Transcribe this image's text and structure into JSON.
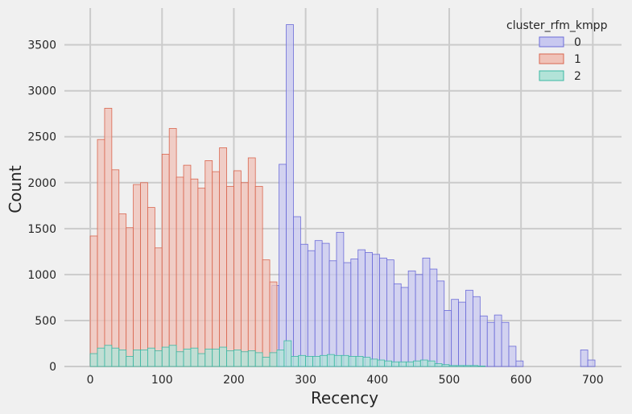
{
  "chart_data": {
    "type": "histogram",
    "xlabel": "Recency",
    "ylabel": "Count",
    "xlim": [
      -36,
      740
    ],
    "ylim": [
      0,
      3900
    ],
    "x_ticks": [
      0,
      100,
      200,
      300,
      400,
      500,
      600,
      700
    ],
    "y_ticks": [
      0,
      500,
      1000,
      1500,
      2000,
      2500,
      3000,
      3500
    ],
    "grid": true,
    "legend": {
      "title": "cluster_rfm_kmpp",
      "position": "top-right"
    },
    "series": [
      {
        "name": "0",
        "color": "#6b6bd8",
        "fill": "#c8c8f0",
        "bins": [
          [
            253,
            263,
            880
          ],
          [
            263,
            273,
            2200
          ],
          [
            273,
            283,
            3720
          ],
          [
            283,
            293,
            1630
          ],
          [
            293,
            303,
            1330
          ],
          [
            303,
            313,
            1260
          ],
          [
            313,
            323,
            1370
          ],
          [
            323,
            333,
            1340
          ],
          [
            333,
            343,
            1150
          ],
          [
            343,
            353,
            1460
          ],
          [
            353,
            363,
            1130
          ],
          [
            363,
            373,
            1170
          ],
          [
            373,
            383,
            1270
          ],
          [
            383,
            393,
            1240
          ],
          [
            393,
            403,
            1220
          ],
          [
            403,
            413,
            1180
          ],
          [
            413,
            423,
            1160
          ],
          [
            423,
            433,
            900
          ],
          [
            433,
            443,
            860
          ],
          [
            443,
            453,
            1040
          ],
          [
            453,
            463,
            1000
          ],
          [
            463,
            473,
            1180
          ],
          [
            473,
            483,
            1060
          ],
          [
            483,
            493,
            930
          ],
          [
            493,
            503,
            610
          ],
          [
            503,
            513,
            730
          ],
          [
            513,
            523,
            700
          ],
          [
            523,
            533,
            830
          ],
          [
            533,
            543,
            760
          ],
          [
            543,
            553,
            550
          ],
          [
            553,
            563,
            480
          ],
          [
            563,
            573,
            560
          ],
          [
            573,
            583,
            480
          ],
          [
            583,
            593,
            220
          ],
          [
            593,
            603,
            60
          ],
          [
            683,
            693,
            180
          ],
          [
            693,
            703,
            70
          ]
        ]
      },
      {
        "name": "1",
        "color": "#d9664f",
        "fill": "#f0c2b8",
        "bins": [
          [
            0,
            10,
            1420
          ],
          [
            10,
            20,
            2470
          ],
          [
            20,
            30,
            2810
          ],
          [
            30,
            40,
            2140
          ],
          [
            40,
            50,
            1660
          ],
          [
            50,
            60,
            1510
          ],
          [
            60,
            70,
            1980
          ],
          [
            70,
            80,
            2000
          ],
          [
            80,
            90,
            1730
          ],
          [
            90,
            100,
            1290
          ],
          [
            100,
            110,
            2310
          ],
          [
            110,
            120,
            2590
          ],
          [
            120,
            130,
            2060
          ],
          [
            130,
            140,
            2190
          ],
          [
            140,
            150,
            2040
          ],
          [
            150,
            160,
            1940
          ],
          [
            160,
            170,
            2240
          ],
          [
            170,
            180,
            2120
          ],
          [
            180,
            190,
            2380
          ],
          [
            190,
            200,
            1960
          ],
          [
            200,
            210,
            2130
          ],
          [
            210,
            220,
            2000
          ],
          [
            220,
            230,
            2270
          ],
          [
            230,
            240,
            1960
          ],
          [
            240,
            250,
            1160
          ],
          [
            250,
            260,
            920
          ]
        ]
      },
      {
        "name": "2",
        "color": "#3cb8a3",
        "fill": "#b2e3d8",
        "bins": [
          [
            0,
            10,
            140
          ],
          [
            10,
            20,
            200
          ],
          [
            20,
            30,
            230
          ],
          [
            30,
            40,
            200
          ],
          [
            40,
            50,
            180
          ],
          [
            50,
            60,
            110
          ],
          [
            60,
            70,
            180
          ],
          [
            70,
            80,
            180
          ],
          [
            80,
            90,
            200
          ],
          [
            90,
            100,
            170
          ],
          [
            100,
            110,
            210
          ],
          [
            110,
            120,
            230
          ],
          [
            120,
            130,
            160
          ],
          [
            130,
            140,
            190
          ],
          [
            140,
            150,
            200
          ],
          [
            150,
            160,
            140
          ],
          [
            160,
            170,
            190
          ],
          [
            170,
            180,
            190
          ],
          [
            180,
            190,
            210
          ],
          [
            190,
            200,
            170
          ],
          [
            200,
            210,
            180
          ],
          [
            210,
            220,
            160
          ],
          [
            220,
            230,
            170
          ],
          [
            230,
            240,
            150
          ],
          [
            240,
            250,
            100
          ],
          [
            250,
            260,
            150
          ],
          [
            260,
            270,
            180
          ],
          [
            270,
            280,
            280
          ],
          [
            280,
            290,
            110
          ],
          [
            290,
            300,
            120
          ],
          [
            300,
            310,
            110
          ],
          [
            310,
            320,
            110
          ],
          [
            320,
            330,
            120
          ],
          [
            330,
            340,
            130
          ],
          [
            340,
            350,
            120
          ],
          [
            350,
            360,
            120
          ],
          [
            360,
            370,
            110
          ],
          [
            370,
            380,
            110
          ],
          [
            380,
            390,
            100
          ],
          [
            390,
            400,
            80
          ],
          [
            400,
            410,
            70
          ],
          [
            410,
            420,
            60
          ],
          [
            420,
            430,
            50
          ],
          [
            430,
            440,
            50
          ],
          [
            440,
            450,
            50
          ],
          [
            450,
            460,
            60
          ],
          [
            460,
            470,
            70
          ],
          [
            470,
            480,
            60
          ],
          [
            480,
            490,
            30
          ],
          [
            490,
            500,
            20
          ],
          [
            500,
            510,
            10
          ],
          [
            510,
            520,
            10
          ],
          [
            520,
            530,
            10
          ],
          [
            530,
            540,
            10
          ],
          [
            540,
            550,
            5
          ]
        ]
      }
    ]
  }
}
